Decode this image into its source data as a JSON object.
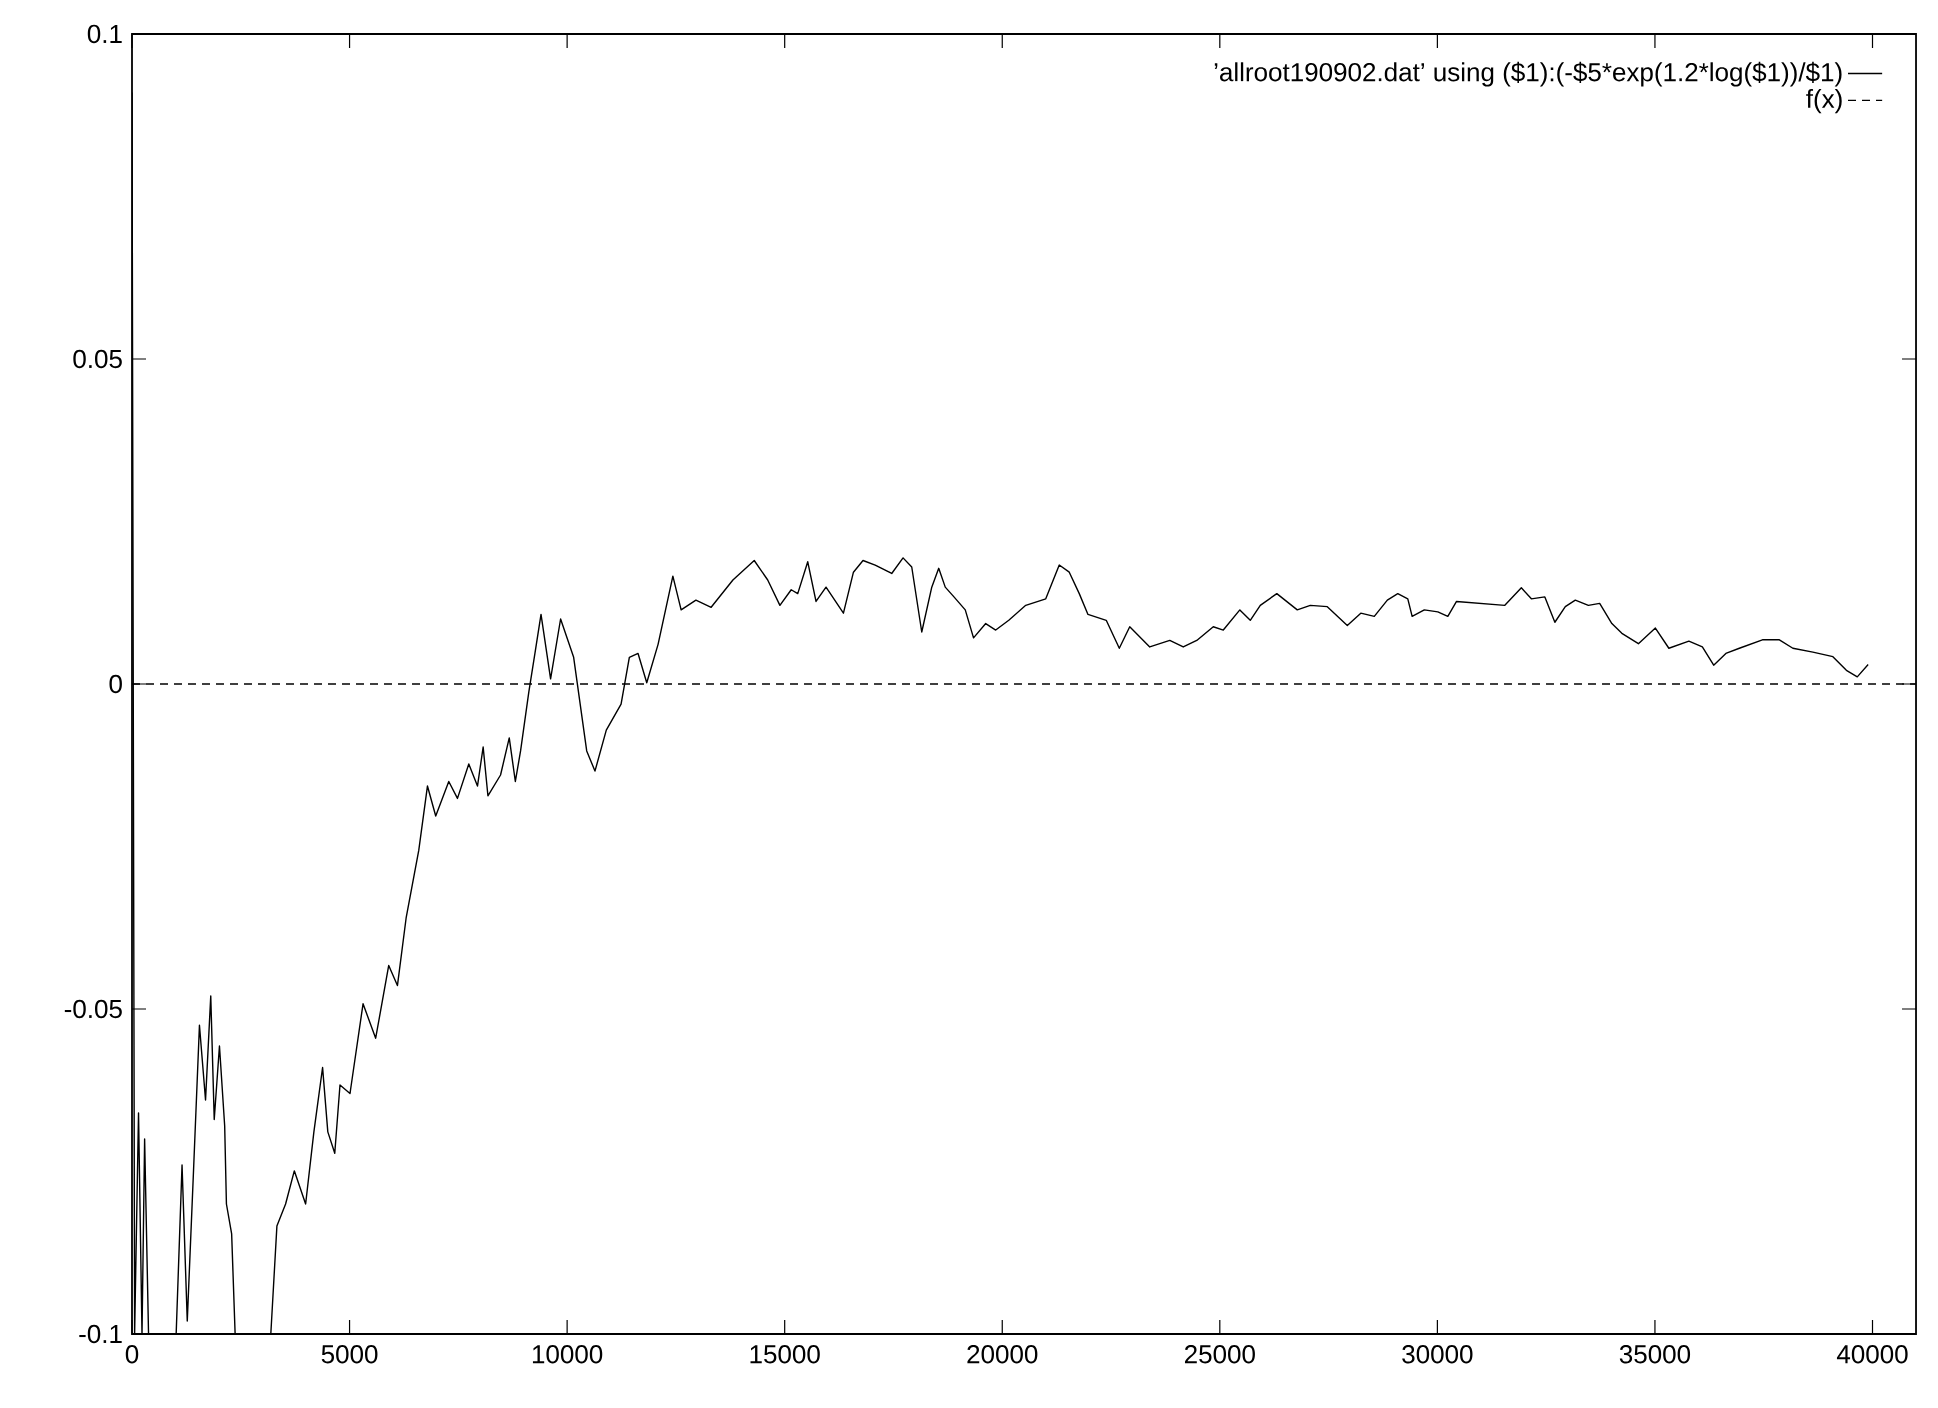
{
  "chart_data": {
    "type": "line",
    "xlim": [
      0,
      41000
    ],
    "ylim": [
      -0.1,
      0.1
    ],
    "xticks": [
      0,
      5000,
      10000,
      15000,
      20000,
      25000,
      30000,
      35000,
      40000
    ],
    "yticks": [
      -0.1,
      -0.05,
      0,
      0.05,
      0.1
    ],
    "grid": false,
    "legend": "top right",
    "marker": "none",
    "series": [
      {
        "name": "’allroot190902.dat’  using ($1):(-$5*exp(1.2*log($1))/$1)",
        "color": "#000000",
        "line_style": "solid",
        "x": [
          0,
          60,
          150,
          230,
          290,
          380,
          700,
          1015,
          1150,
          1270,
          1410,
          1550,
          1690,
          1810,
          1890,
          2010,
          2130,
          2170,
          2290,
          2370,
          2800,
          3190,
          3330,
          3530,
          3730,
          3990,
          4180,
          4380,
          4500,
          4660,
          4780,
          5010,
          5310,
          5600,
          5900,
          6100,
          6300,
          6590,
          6790,
          6980,
          7280,
          7480,
          7740,
          7940,
          8070,
          8180,
          8470,
          8670,
          8810,
          8930,
          9120,
          9260,
          9400,
          9620,
          9850,
          10150,
          10450,
          10640,
          10900,
          11240,
          11430,
          11630,
          11830,
          12090,
          12430,
          12620,
          12960,
          13310,
          13810,
          14300,
          14610,
          14890,
          15150,
          15300,
          15530,
          15720,
          15950,
          16350,
          16580,
          16800,
          17080,
          17460,
          17720,
          17920,
          18150,
          18380,
          18540,
          18690,
          18890,
          19150,
          19340,
          19620,
          19850,
          20150,
          20540,
          21000,
          21310,
          21540,
          21770,
          21970,
          22390,
          22690,
          22930,
          23390,
          23850,
          24160,
          24470,
          24850,
          25080,
          25460,
          25700,
          25930,
          26310,
          26780,
          27080,
          27470,
          27930,
          28240,
          28550,
          28850,
          29090,
          29320,
          29420,
          29700,
          30010,
          30240,
          30440,
          31550,
          31930,
          32160,
          32470,
          32700,
          32940,
          33170,
          33470,
          33730,
          34010,
          34240,
          34620,
          35010,
          35320,
          35780,
          36090,
          36350,
          36630,
          36940,
          37470,
          37860,
          38170,
          38630,
          39090,
          39400,
          39650,
          39900
        ],
        "values": [
          0.091,
          -0.1,
          -0.066,
          -0.1,
          -0.07,
          -0.1,
          null,
          -0.1,
          -0.074,
          -0.098,
          -0.0755,
          -0.0525,
          -0.064,
          -0.048,
          -0.067,
          -0.0557,
          -0.068,
          -0.08,
          -0.0846,
          -0.1,
          null,
          -0.1,
          -0.0834,
          -0.08,
          -0.0749,
          -0.08,
          -0.0689,
          -0.059,
          -0.0689,
          -0.0722,
          -0.0617,
          -0.063,
          -0.0492,
          -0.0545,
          -0.0433,
          -0.0464,
          -0.036,
          -0.0256,
          -0.0157,
          -0.0203,
          -0.015,
          -0.0176,
          -0.0123,
          -0.0157,
          -0.0097,
          -0.0172,
          -0.014,
          -0.0083,
          -0.015,
          -0.0103,
          -0.0012,
          0.0047,
          0.0107,
          0.0008,
          0.01,
          0.0041,
          -0.0103,
          -0.0134,
          -0.0071,
          -0.0031,
          0.0041,
          0.0047,
          0.0002,
          0.0061,
          0.0166,
          0.0114,
          0.0129,
          0.0118,
          0.016,
          0.019,
          0.016,
          0.0121,
          0.0145,
          0.0139,
          0.0188,
          0.0127,
          0.0149,
          0.0109,
          0.0172,
          0.019,
          0.0183,
          0.017,
          0.0194,
          0.018,
          0.008,
          0.0149,
          0.0178,
          0.0149,
          0.0134,
          0.0114,
          0.0071,
          0.0093,
          0.0083,
          0.0098,
          0.0121,
          0.0131,
          0.0183,
          0.0172,
          0.0139,
          0.0107,
          0.0098,
          0.0055,
          0.0088,
          0.0057,
          0.0067,
          0.0057,
          0.0067,
          0.0088,
          0.0083,
          0.0114,
          0.0098,
          0.0121,
          0.0139,
          0.0114,
          0.0121,
          0.0119,
          0.009,
          0.0109,
          0.0104,
          0.0129,
          0.0139,
          0.0131,
          0.0104,
          0.0114,
          0.0111,
          0.0104,
          0.0127,
          0.0121,
          0.0148,
          0.0131,
          0.0134,
          0.0095,
          0.0119,
          0.0129,
          0.0121,
          0.0124,
          0.0093,
          0.0078,
          0.0062,
          0.0086,
          0.0055,
          0.0066,
          0.0057,
          0.0029,
          0.0047,
          0.0055,
          0.0068,
          0.0068,
          0.0055,
          0.0049,
          0.0042,
          0.0021,
          0.0011,
          0.003
        ]
      },
      {
        "name": "f(x)",
        "color": "#000000",
        "line_style": "dashed",
        "x": [
          0,
          41000
        ],
        "values": [
          0,
          0
        ]
      }
    ]
  }
}
